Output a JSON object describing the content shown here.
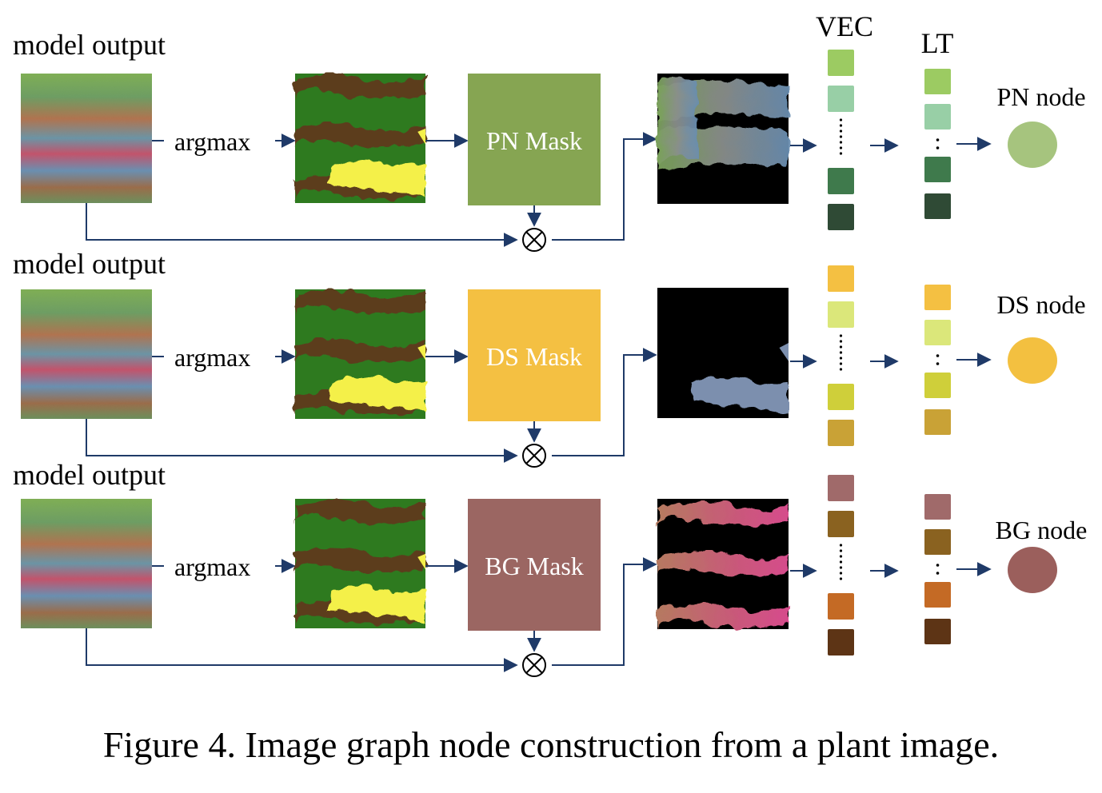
{
  "figure": {
    "caption": "Figure 4. Image graph node construction from a plant image.",
    "column_headers": {
      "vec": "VEC",
      "lt": "LT"
    },
    "rows": [
      {
        "id": "pn",
        "model_output_label": "model output",
        "argmax_label": "argmax",
        "mask_label": "PN Mask",
        "mask_color": "#86a552",
        "node_label": "PN node",
        "node_color": "#a6c47e",
        "vec_colors": [
          "#9ccb62",
          "#98cfa6",
          "#3f7a4c",
          "#2f4a35"
        ],
        "lt_colors": [
          "#9ccb62",
          "#98cfa6",
          "#3f7a4c",
          "#2f4a35"
        ],
        "masked_region": "top"
      },
      {
        "id": "ds",
        "model_output_label": "model output",
        "argmax_label": "argmax",
        "mask_label": "DS Mask",
        "mask_color": "#f4c042",
        "node_label": "DS node",
        "node_color": "#f3c040",
        "vec_colors": [
          "#f4c042",
          "#dbe77a",
          "#cfcf3a",
          "#c9a236"
        ],
        "lt_colors": [
          "#f4c042",
          "#dbe77a",
          "#cfcf3a",
          "#c9a236"
        ],
        "masked_region": "bottom"
      },
      {
        "id": "bg",
        "model_output_label": "model output",
        "argmax_label": "argmax",
        "mask_label": "BG Mask",
        "mask_color": "#9b6662",
        "node_label": "BG node",
        "node_color": "#9b5f5c",
        "vec_colors": [
          "#a06a6a",
          "#8a6220",
          "#c46a25",
          "#5d3415"
        ],
        "lt_colors": [
          "#a06a6a",
          "#8a6220",
          "#c46a25",
          "#5d3415"
        ],
        "masked_region": "stripes"
      }
    ],
    "multiply_symbol": "⊗",
    "ellipsis_dots": "⋮"
  }
}
